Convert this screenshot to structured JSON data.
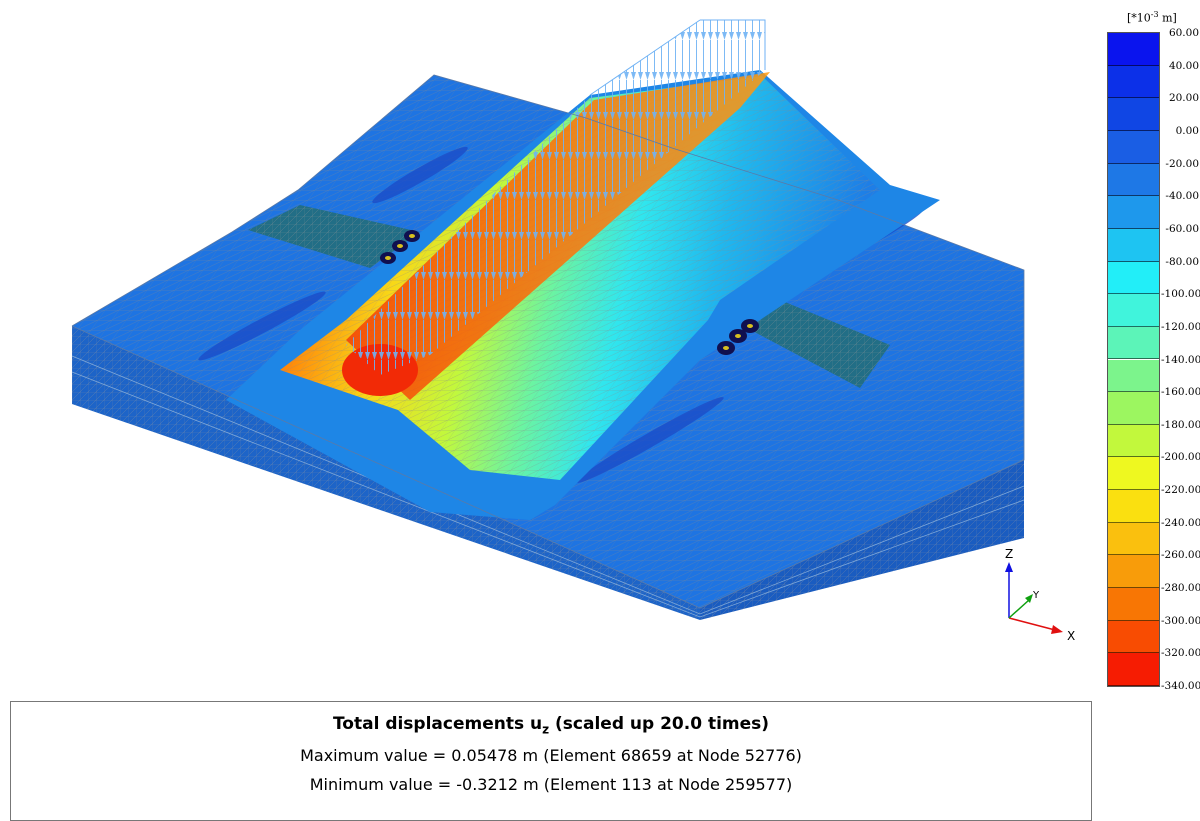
{
  "legend": {
    "unit_prefix": "[*10",
    "unit_exponent": "-3",
    "unit_suffix": " m]",
    "ticks": [
      "60.00",
      "40.00",
      "20.00",
      "0.00",
      "-20.00",
      "-40.00",
      "-60.00",
      "-80.00",
      "-100.00",
      "-120.00",
      "-140.00",
      "-160.00",
      "-180.00",
      "-200.00",
      "-220.00",
      "-240.00",
      "-260.00",
      "-280.00",
      "-300.00",
      "-320.00",
      "-340.00"
    ],
    "colors": [
      "#0a14ee",
      "#0c30e8",
      "#1046e4",
      "#1a5ee4",
      "#1e78e6",
      "#1e98ec",
      "#1ec4f2",
      "#22eef8",
      "#40f4dc",
      "#5cf4b8",
      "#7cf48c",
      "#9cf660",
      "#c2f83c",
      "#eef820",
      "#fae010",
      "#fac00e",
      "#f89c0a",
      "#f87604",
      "#f84c02",
      "#f61c02"
    ]
  },
  "axis": {
    "z": "Z",
    "y": "Y",
    "x": "X"
  },
  "info": {
    "title_main": "Total displacements u",
    "title_sub": "z",
    "title_suffix": " (scaled up 20.0 times)",
    "max_line": "Maximum value = 0.05478 m (Element 68659 at Node 52776)",
    "min_line": "Minimum value = -0.3212 m (Element 113 at Node 259577)"
  },
  "colors": {
    "ground": "#1e74e2",
    "ground_side": "#1d64c8",
    "mesh": "#8a8a8a",
    "trench": "#226e86",
    "load_arrows": "#6fb2f4"
  }
}
